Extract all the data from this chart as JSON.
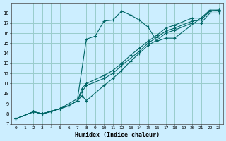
{
  "title": "",
  "xlabel": "Humidex (Indice chaleur)",
  "bg_color": "#cceeff",
  "grid_color": "#99cccc",
  "line_color": "#006666",
  "xlim": [
    -0.5,
    23.5
  ],
  "ylim": [
    7,
    19
  ],
  "xticks": [
    0,
    1,
    2,
    3,
    4,
    5,
    6,
    7,
    8,
    9,
    10,
    11,
    12,
    13,
    14,
    15,
    16,
    17,
    18,
    19,
    20,
    21,
    22,
    23
  ],
  "yticks": [
    7,
    8,
    9,
    10,
    11,
    12,
    13,
    14,
    15,
    16,
    17,
    18
  ],
  "series": [
    {
      "x": [
        0,
        2,
        3,
        4,
        5,
        6,
        7,
        8,
        9,
        10,
        11,
        12,
        13,
        14,
        15,
        16,
        17,
        18,
        22,
        23
      ],
      "y": [
        7.5,
        8.2,
        8.0,
        8.2,
        8.5,
        9.0,
        9.5,
        15.4,
        15.7,
        17.2,
        17.3,
        18.2,
        17.8,
        17.3,
        16.6,
        15.2,
        15.5,
        15.5,
        18.2,
        18.3
      ]
    },
    {
      "x": [
        0,
        2,
        3,
        5,
        6,
        7,
        7.5,
        8,
        10,
        11,
        12,
        13,
        14,
        15,
        16,
        17,
        18,
        20,
        21,
        22,
        23
      ],
      "y": [
        7.5,
        8.2,
        8.0,
        8.5,
        8.8,
        9.3,
        10.2,
        10.8,
        11.5,
        12.0,
        12.8,
        13.5,
        14.2,
        15.0,
        15.6,
        16.2,
        16.5,
        17.2,
        17.3,
        18.2,
        18.2
      ]
    },
    {
      "x": [
        0,
        2,
        3,
        5,
        6,
        7,
        7.5,
        8,
        10,
        11,
        12,
        13,
        14,
        15,
        16,
        17,
        18,
        20,
        21,
        22,
        23
      ],
      "y": [
        7.5,
        8.2,
        8.0,
        8.5,
        8.8,
        9.3,
        10.5,
        11.0,
        11.8,
        12.3,
        13.0,
        13.8,
        14.5,
        15.2,
        15.8,
        16.5,
        16.8,
        17.5,
        17.5,
        18.3,
        18.3
      ]
    },
    {
      "x": [
        0,
        2,
        3,
        5,
        6,
        7,
        7.5,
        8,
        10,
        11,
        12,
        13,
        14,
        15,
        16,
        17,
        18,
        20,
        21,
        22,
        23
      ],
      "y": [
        7.5,
        8.2,
        8.0,
        8.5,
        8.8,
        9.3,
        9.8,
        9.3,
        10.8,
        11.5,
        12.3,
        13.2,
        14.0,
        14.8,
        15.3,
        16.0,
        16.3,
        17.0,
        17.0,
        18.0,
        18.0
      ]
    }
  ]
}
